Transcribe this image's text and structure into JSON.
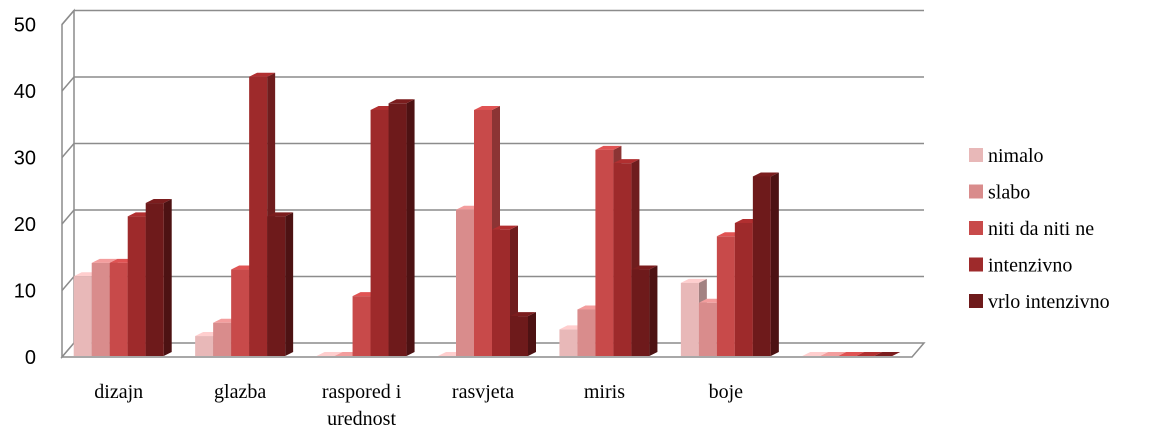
{
  "chart_data": {
    "type": "bar",
    "variant": "3d-clustered",
    "categories": [
      [
        "dizajn"
      ],
      [
        "glazba"
      ],
      [
        "raspored i",
        "urednost"
      ],
      [
        "rasvjeta"
      ],
      [
        "miris"
      ],
      [
        "boje"
      ],
      [
        ""
      ]
    ],
    "series": [
      {
        "name": "nimalo",
        "color": "#e8b8b8",
        "values": [
          12,
          3,
          0,
          0,
          4,
          11,
          0
        ]
      },
      {
        "name": "slabo",
        "color": "#d98c8c",
        "values": [
          14,
          5,
          0,
          22,
          7,
          8,
          0
        ]
      },
      {
        "name": "niti da niti ne",
        "color": "#c84a4a",
        "values": [
          14,
          13,
          9,
          37,
          31,
          18,
          0
        ]
      },
      {
        "name": "intenzivno",
        "color": "#9e2a2b",
        "values": [
          21,
          42,
          37,
          19,
          29,
          20,
          0
        ]
      },
      {
        "name": "vrlo intenzivno",
        "color": "#6e1a1b",
        "values": [
          23,
          21,
          38,
          6,
          13,
          27,
          0
        ]
      }
    ],
    "yticks": [
      "0",
      "10",
      "20",
      "30",
      "40",
      "50"
    ],
    "ylim": [
      0,
      50
    ],
    "grid": true,
    "legend_position": "right"
  }
}
